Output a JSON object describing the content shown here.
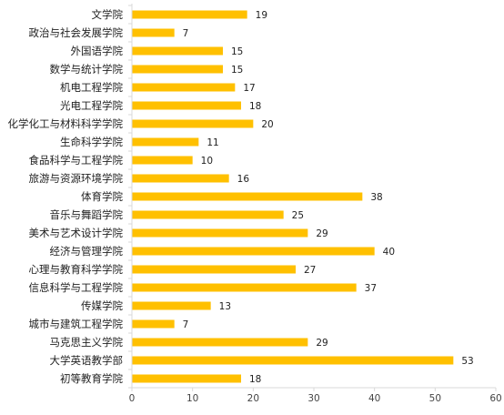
{
  "chart_data": {
    "type": "bar",
    "orientation": "horizontal",
    "title": "",
    "xlabel": "",
    "ylabel": "",
    "categories": [
      "文学院",
      "政治与社会发展学院",
      "外国语学院",
      "数学与统计学院",
      "机电工程学院",
      "光电工程学院",
      "化学化工与材料科学学院",
      "生命科学学院",
      "食品科学与工程学院",
      "旅游与资源环境学院",
      "体育学院",
      "音乐与舞蹈学院",
      "美术与艺术设计学院",
      "经济与管理学院",
      "心理与教育科学学院",
      "信息科学与工程学院",
      "传媒学院",
      "城市与建筑工程学院",
      "马克思主义学院",
      "大学英语教学部",
      "初等教育学院"
    ],
    "values": [
      19,
      7,
      15,
      15,
      17,
      18,
      20,
      11,
      10,
      16,
      38,
      25,
      29,
      40,
      27,
      37,
      13,
      7,
      29,
      53,
      18
    ],
    "xlim": [
      0,
      60
    ],
    "xticks": [
      0,
      10,
      20,
      30,
      40,
      50,
      60
    ],
    "bar_color": "#FFC000",
    "grid": false,
    "legend": "none",
    "data_labels": true
  }
}
